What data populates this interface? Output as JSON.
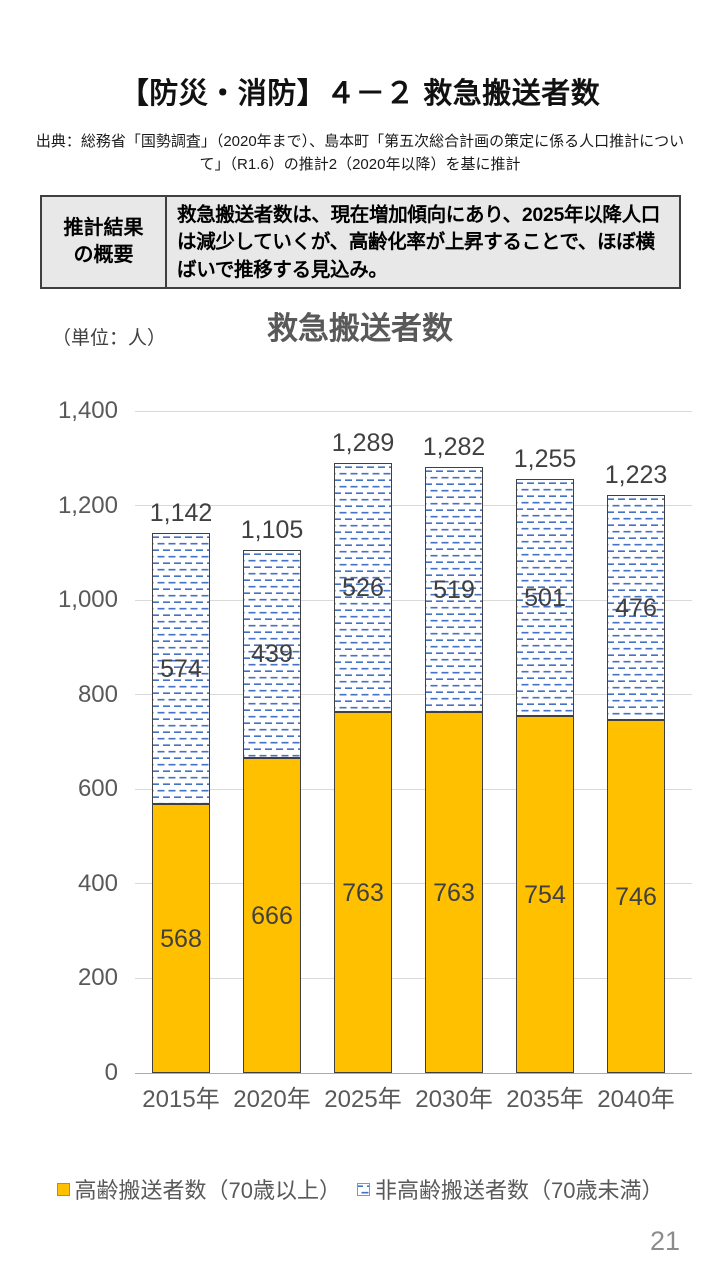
{
  "page": {
    "title": "【防災・消防】４－２ 救急搬送者数",
    "source_line1": "出典：総務省「国勢調査」（2020年まで）、島本町「第五次総合計画の策定に係る人口推計につい",
    "source_line2": "て」（R1.6）の推計2（2020年以降）を基に推計",
    "page_number": "21"
  },
  "summary": {
    "header": "推計結果の概要",
    "body": "救急搬送者数は、現在増加傾向にあり、2025年以降人口は減少していくが、高齢化率が上昇することで、ほぼ横ばいで推移する見込み。"
  },
  "chart_data": {
    "type": "bar",
    "stacked": true,
    "title": "救急搬送者数",
    "unit_label": "（単位：人）",
    "categories": [
      "2015年",
      "2020年",
      "2025年",
      "2030年",
      "2035年",
      "2040年"
    ],
    "series": [
      {
        "name": "高齢搬送者数（70歳以上）",
        "fill": "#FFC000",
        "values": [
          568,
          666,
          763,
          763,
          754,
          746
        ]
      },
      {
        "name": "非高齢搬送者数（70歳未満）",
        "fill": "white with blue dashed pattern",
        "pattern_color": "#4472C4",
        "values": [
          574,
          439,
          526,
          519,
          501,
          476
        ]
      }
    ],
    "total_labels": [
      "1,142",
      "1,105",
      "1,289",
      "1,282",
      "1,255",
      "1,223"
    ],
    "ylim": [
      0,
      1400
    ],
    "yticks": [
      0,
      200,
      400,
      600,
      800,
      1000,
      1200,
      1400
    ],
    "ytick_labels": [
      "0",
      "200",
      "400",
      "600",
      "800",
      "1,000",
      "1,200",
      "1,400"
    ],
    "grid": true,
    "legend_position": "bottom"
  },
  "colors": {
    "elderly_fill": "#FFC000",
    "pattern_blue": "#4472C4",
    "bar_border": "#404040",
    "axis_text": "#595959",
    "data_label": "#404040",
    "gridline": "#D9D9D9",
    "axis_line": "#ABABAB",
    "summary_bg": "#E9E8E8"
  }
}
